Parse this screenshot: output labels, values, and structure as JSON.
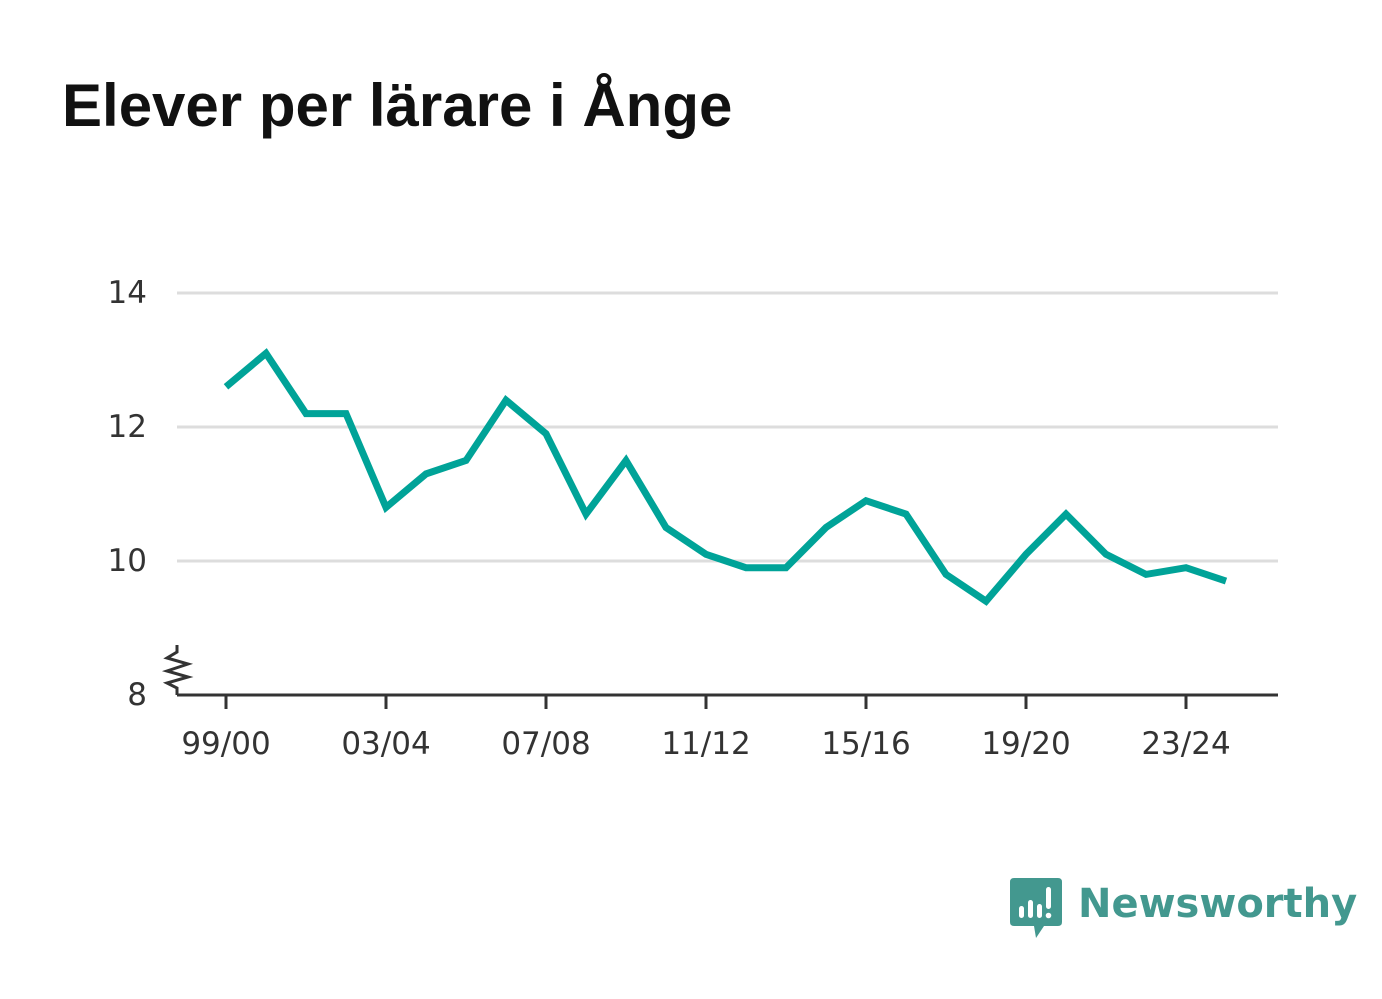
{
  "title": "Elever per lärare i Ånge",
  "brand": {
    "name": "Newsworthy",
    "color": "#43988f",
    "icon": "bar-chart-speech-bubble-icon"
  },
  "colors": {
    "line": "#00a398",
    "grid": "#dddddd",
    "axis": "#333333"
  },
  "chart_data": {
    "type": "line",
    "title": "Elever per lärare i Ånge",
    "xlabel": "",
    "ylabel": "",
    "x": [
      "99/00",
      "00/01",
      "01/02",
      "02/03",
      "03/04",
      "04/05",
      "05/06",
      "06/07",
      "07/08",
      "08/09",
      "09/10",
      "10/11",
      "11/12",
      "12/13",
      "13/14",
      "14/15",
      "15/16",
      "16/17",
      "17/18",
      "18/19",
      "19/20",
      "20/21",
      "21/22",
      "22/23",
      "23/24",
      "24/25"
    ],
    "x_tick_labels": [
      "99/00",
      "03/04",
      "07/08",
      "11/12",
      "15/16",
      "19/20",
      "23/24"
    ],
    "series": [
      {
        "values": [
          12.6,
          13.1,
          12.2,
          12.2,
          10.8,
          11.3,
          11.5,
          12.4,
          11.9,
          10.7,
          11.5,
          10.5,
          10.1,
          9.9,
          9.9,
          10.5,
          10.9,
          10.7,
          9.8,
          9.4,
          10.1,
          10.7,
          10.1,
          9.8,
          9.9,
          9.7
        ]
      }
    ],
    "y_ticks": [
      8,
      10,
      12,
      14
    ],
    "ylim": [
      8,
      14
    ],
    "y_axis_break": true,
    "grid": true,
    "legend": "none"
  }
}
